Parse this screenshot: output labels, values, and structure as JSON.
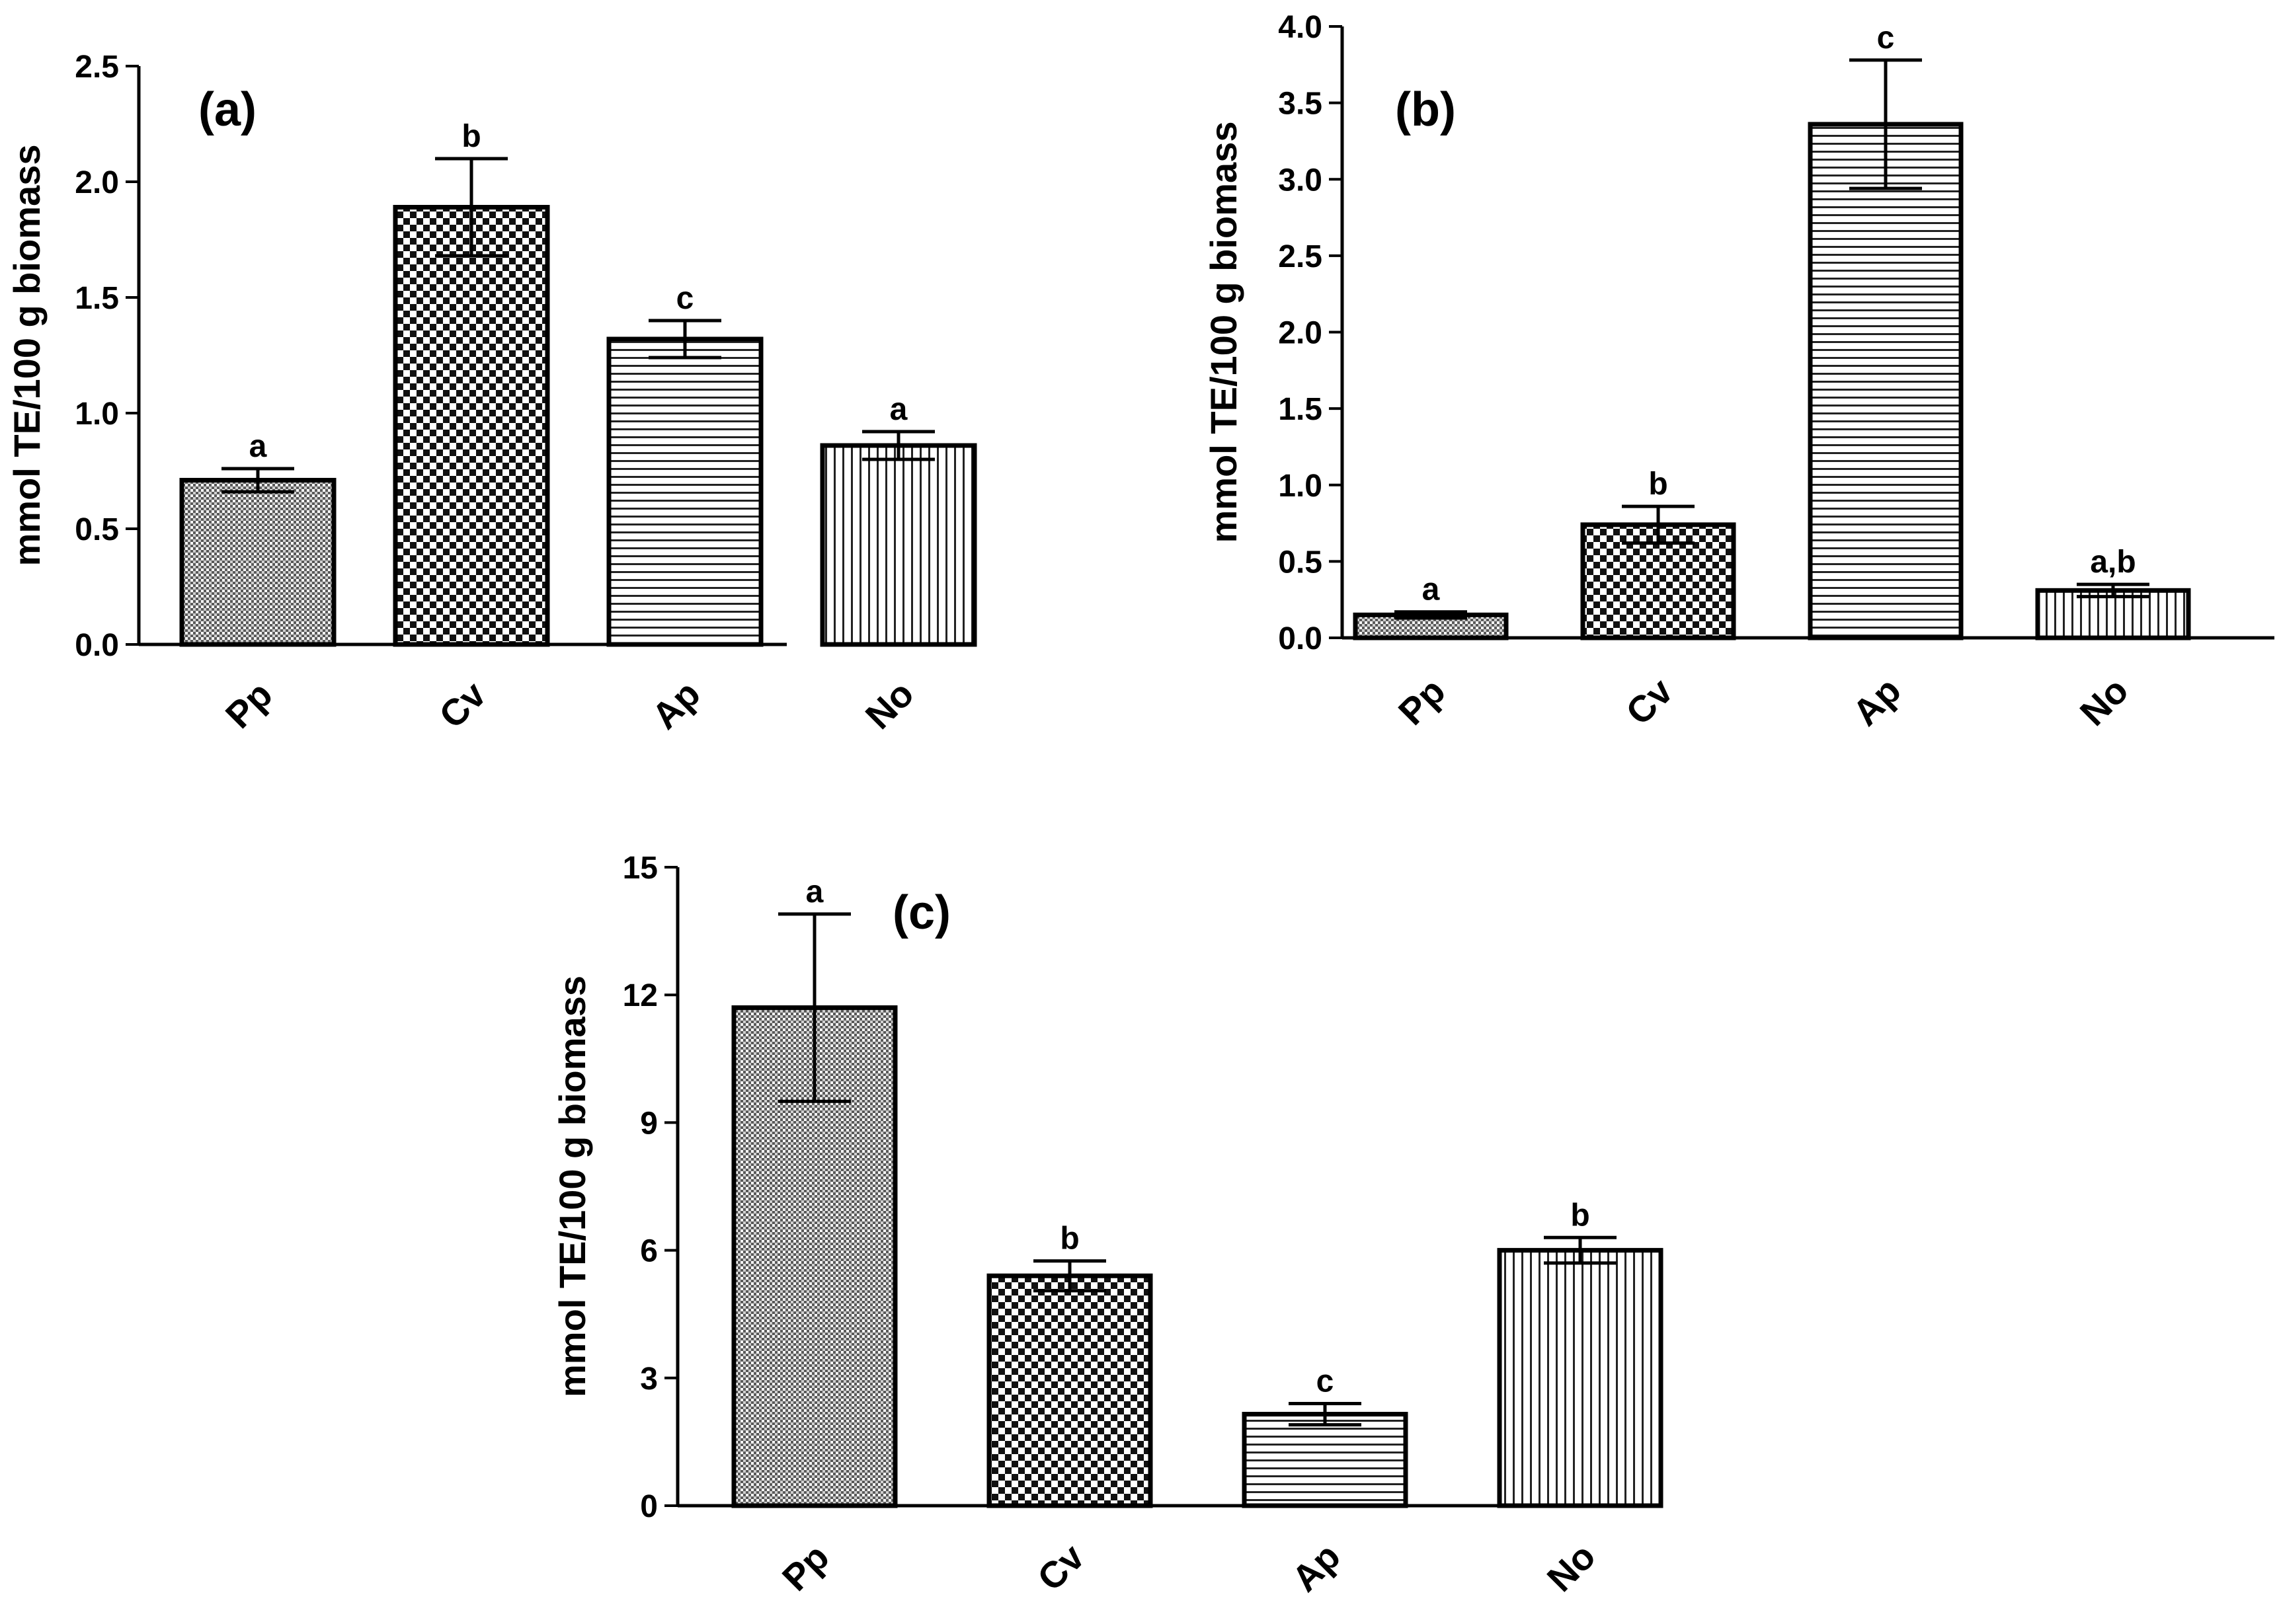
{
  "figure": {
    "description_free": true,
    "pattern_legend": {
      "Pp": "fine-dot",
      "Cv": "checker",
      "Ap": "horizontal-stripes",
      "No": "vertical-stripes"
    }
  },
  "chart_data": [
    {
      "type": "bar",
      "title": "(a)",
      "xlabel": "",
      "ylabel": "mmol TE/100 g biomass",
      "categories": [
        "Pp",
        "Cv",
        "Ap",
        "No"
      ],
      "values": [
        0.71,
        1.89,
        1.32,
        0.86
      ],
      "errors": [
        0.05,
        0.21,
        0.08,
        0.06
      ],
      "significance_labels": [
        "a",
        "b",
        "c",
        "a"
      ],
      "ylim": [
        0,
        2.5
      ],
      "yticks": [
        0,
        0.5,
        1.0,
        1.5,
        2.0,
        2.5
      ],
      "ytick_labels": [
        "0.0",
        "0.5",
        "1.0",
        "1.5",
        "2.0",
        "2.5"
      ],
      "grid": false
    },
    {
      "type": "bar",
      "title": "(b)",
      "xlabel": "",
      "ylabel": "mmol TE/100 g biomass",
      "categories": [
        "Pp",
        "Cv",
        "Ap",
        "No"
      ],
      "values": [
        0.15,
        0.74,
        3.36,
        0.31
      ],
      "errors": [
        0.02,
        0.12,
        0.42,
        0.04
      ],
      "significance_labels": [
        "a",
        "b",
        "c",
        "a,b"
      ],
      "ylim": [
        0,
        4.0
      ],
      "yticks": [
        0,
        0.5,
        1.0,
        1.5,
        2.0,
        2.5,
        3.0,
        3.5,
        4.0
      ],
      "ytick_labels": [
        "0.0",
        "0.5",
        "1.0",
        "1.5",
        "2.0",
        "2.5",
        "3.0",
        "3.5",
        "4.0"
      ],
      "grid": false
    },
    {
      "type": "bar",
      "title": "(c)",
      "xlabel": "",
      "ylabel": "mmol TE/100 g biomass",
      "categories": [
        "Pp",
        "Cv",
        "Ap",
        "No"
      ],
      "values": [
        11.7,
        5.4,
        2.15,
        6.0
      ],
      "errors": [
        2.2,
        0.35,
        0.25,
        0.3
      ],
      "significance_labels": [
        "a",
        "b",
        "c",
        "b"
      ],
      "ylim": [
        0,
        15
      ],
      "yticks": [
        0,
        3,
        6,
        9,
        12,
        15
      ],
      "ytick_labels": [
        "0",
        "3",
        "6",
        "9",
        "12",
        "15"
      ],
      "grid": false
    }
  ]
}
